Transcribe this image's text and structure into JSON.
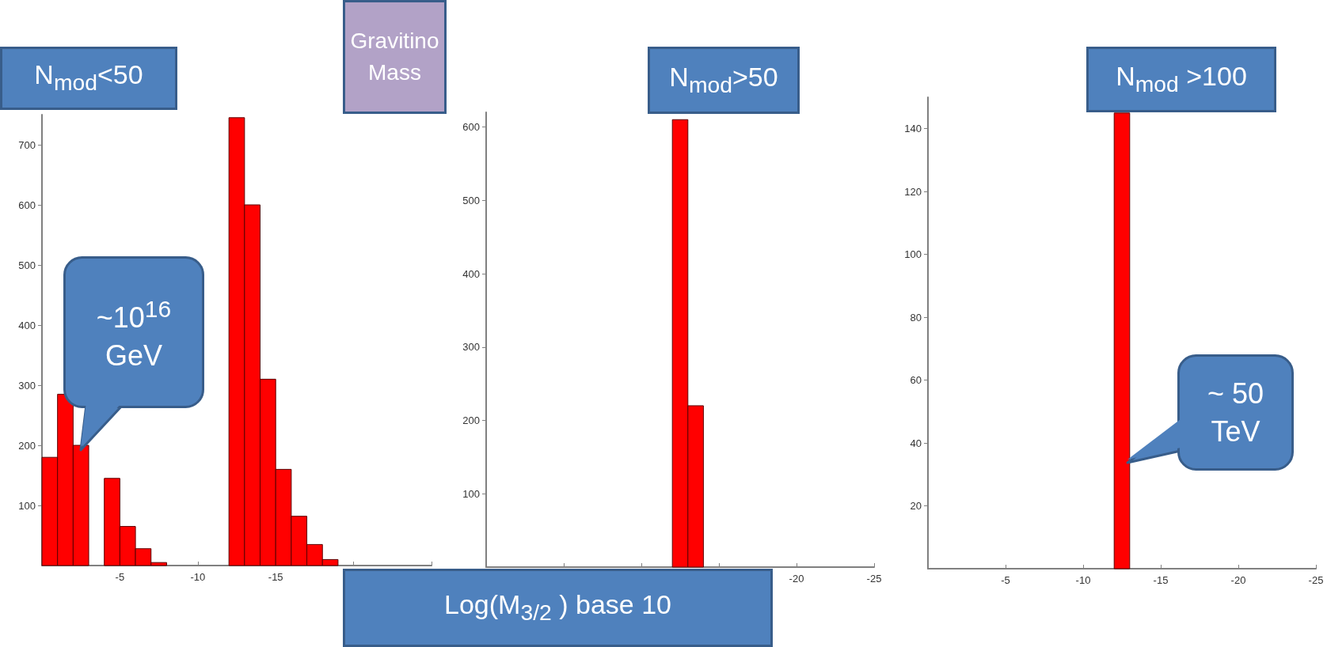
{
  "chart_data": [
    {
      "type": "histogram",
      "title": "N$_{mod}$<50",
      "color": "#ff0000",
      "bins": [
        0,
        -1,
        -2,
        -3,
        -4,
        -5,
        -6,
        -7,
        -8,
        -9,
        -10,
        -11,
        -12,
        -13,
        -14,
        -15,
        -16,
        -17,
        -18,
        -19
      ],
      "values": [
        180,
        285,
        200,
        null,
        145,
        65,
        28,
        5,
        0,
        0,
        0,
        0,
        745,
        600,
        310,
        160,
        82,
        35,
        10
      ],
      "xlim": [
        0,
        -25
      ],
      "xticks": [
        {
          "value": 0,
          "label": null
        },
        -5,
        -10,
        -15,
        {
          "value": -20,
          "label": null
        },
        {
          "value": -25,
          "label": null
        }
      ],
      "ylim": [
        0,
        750
      ],
      "yticks": [
        100,
        200,
        300,
        400,
        500,
        600,
        700
      ],
      "annotations": [
        "Gravitino Mass",
        "~10$^{16}$ GeV"
      ]
    },
    {
      "type": "histogram",
      "title": "N$_{mod}$>50",
      "xlabel": "Log(M$_{3/2}$ ) base 10",
      "color": "#ff0000",
      "bins": [
        -12,
        -13,
        -14
      ],
      "values": [
        610,
        220
      ],
      "xlim": [
        0,
        -25
      ],
      "xticks": [
        {
          "value": 0,
          "label": null
        },
        {
          "value": -5,
          "label": null
        },
        {
          "value": -10,
          "label": null
        },
        {
          "value": -15,
          "label": null
        },
        -20,
        -25
      ],
      "ylim": [
        0,
        620
      ],
      "yticks": [
        100,
        200,
        300,
        400,
        500,
        600
      ]
    },
    {
      "type": "histogram",
      "title": "N$_{mod}$ >100",
      "color": "#ff0000",
      "bins": [
        -12,
        -13
      ],
      "values": [
        145
      ],
      "xlim": [
        0,
        -25
      ],
      "xticks": [
        {
          "value": 0,
          "label": null
        },
        -5,
        -10,
        -15,
        -20,
        -25
      ],
      "ylim": [
        0,
        150
      ],
      "yticks": [
        20,
        40,
        60,
        80,
        100,
        120,
        140
      ],
      "annotations": [
        "~ 50 TeV"
      ]
    }
  ]
}
